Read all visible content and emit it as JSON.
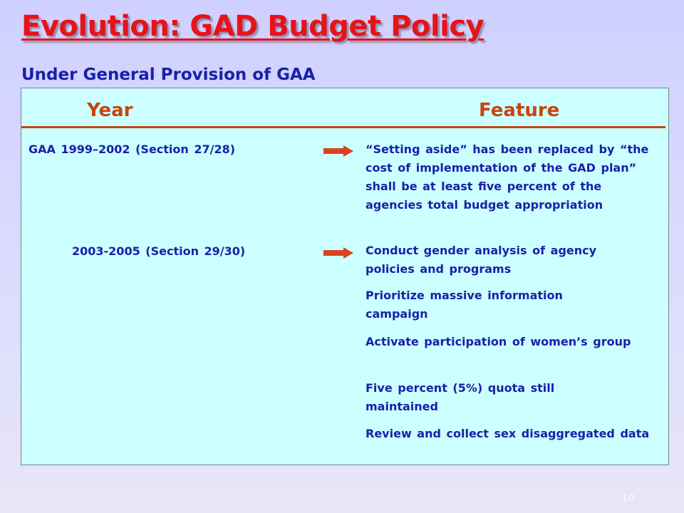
{
  "slide": {
    "title": "Evolution: GAD Budget Policy",
    "subtitle": "Under General Provision of GAA",
    "page_number": "10"
  },
  "table": {
    "headers": {
      "year": "Year",
      "feature": "Feature"
    },
    "rows": [
      {
        "year": "GAA 1999–2002  (Section 27/28)",
        "features": [
          "“Setting aside” has been replaced by “the cost of implementation of the GAD plan” shall be at least five percent of the agencies total budget appropriation"
        ]
      },
      {
        "year": "2003-2005  (Section 29/30)",
        "features": [
          "Conduct gender analysis of agency policies and programs",
          "Prioritize massive information campaign",
          "Activate participation of women’s group",
          "Five percent (5%) quota still maintained",
          "Review and collect sex disaggregated data"
        ]
      }
    ]
  },
  "colors": {
    "title": "#e8121b",
    "subtitle": "#1a20a8",
    "header": "#c8440c",
    "panel": "#ccffff",
    "arrow": "#d9441e"
  }
}
